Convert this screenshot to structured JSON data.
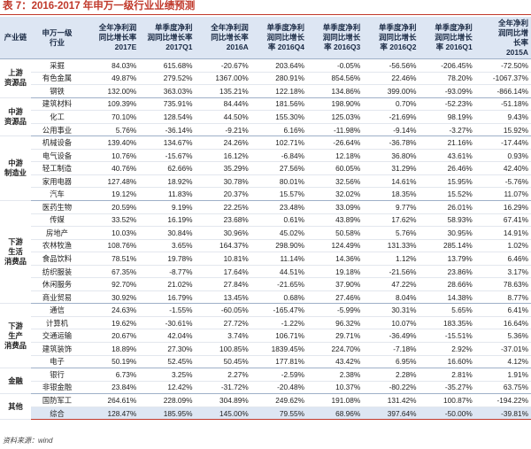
{
  "title": "表 7：2016-2017 年申万一级行业业绩预测",
  "headers": {
    "sector": "产业链",
    "industry": [
      "申万一级",
      "行业"
    ],
    "col1": [
      "全年净利润",
      "同比增长率",
      "2017E"
    ],
    "col2": [
      "单季度净利",
      "润同比增长率",
      "2017Q1"
    ],
    "col3": [
      "全年净利润",
      "同比增长率",
      "2016A"
    ],
    "col4": [
      "单季度净利",
      "润同比增长",
      "率 2016Q4"
    ],
    "col5": [
      "单季度净利",
      "润同比增长",
      "率 2016Q3"
    ],
    "col6": [
      "单季度净利",
      "润同比增长",
      "率 2016Q2"
    ],
    "col7": [
      "单季度净利",
      "润同比增长",
      "率 2016Q1"
    ],
    "col8": [
      "全年净利",
      "润同比增",
      "长率",
      "2015A"
    ]
  },
  "groups": [
    {
      "sector": "上游\n资源品",
      "rows": [
        [
          "采掘",
          "84.03%",
          "615.68%",
          "-20.67%",
          "203.64%",
          "-0.05%",
          "-56.56%",
          "-206.45%",
          "-72.50%"
        ],
        [
          "有色金属",
          "49.87%",
          "279.52%",
          "1367.00%",
          "280.91%",
          "854.56%",
          "22.46%",
          "78.20%",
          "-1067.37%"
        ],
        [
          "钢铁",
          "132.00%",
          "363.03%",
          "135.21%",
          "122.18%",
          "134.86%",
          "399.00%",
          "-93.09%",
          "-866.14%"
        ]
      ]
    },
    {
      "sector": "中游\n资源品",
      "rows": [
        [
          "建筑材料",
          "109.39%",
          "735.91%",
          "84.44%",
          "181.56%",
          "198.90%",
          "0.70%",
          "-52.23%",
          "-51.18%"
        ],
        [
          "化工",
          "70.10%",
          "128.54%",
          "44.50%",
          "155.30%",
          "125.03%",
          "-21.69%",
          "98.19%",
          "9.43%"
        ],
        [
          "公用事业",
          "5.76%",
          "-36.14%",
          "-9.21%",
          "6.16%",
          "-11.98%",
          "-9.14%",
          "-3.27%",
          "15.92%"
        ]
      ]
    },
    {
      "sector": "中游\n制造业",
      "rows": [
        [
          "机械设备",
          "139.40%",
          "134.67%",
          "24.26%",
          "102.71%",
          "-26.64%",
          "-36.78%",
          "21.16%",
          "-17.44%"
        ],
        [
          "电气设备",
          "10.76%",
          "-15.67%",
          "16.12%",
          "-6.84%",
          "12.18%",
          "36.80%",
          "43.61%",
          "0.93%"
        ],
        [
          "轻工制造",
          "40.76%",
          "62.66%",
          "35.29%",
          "27.56%",
          "60.05%",
          "31.29%",
          "26.46%",
          "42.40%"
        ],
        [
          "家用电器",
          "127.48%",
          "18.92%",
          "30.78%",
          "80.01%",
          "32.56%",
          "14.61%",
          "15.95%",
          "-5.76%"
        ],
        [
          "汽车",
          "19.12%",
          "11.83%",
          "20.37%",
          "15.57%",
          "32.02%",
          "18.35%",
          "15.52%",
          "11.07%"
        ]
      ]
    },
    {
      "sector": "下游\n生活\n消费品",
      "rows": [
        [
          "医药生物",
          "20.59%",
          "9.19%",
          "22.25%",
          "23.48%",
          "33.09%",
          "9.77%",
          "26.01%",
          "16.29%"
        ],
        [
          "传媒",
          "33.52%",
          "16.19%",
          "23.68%",
          "0.61%",
          "43.89%",
          "17.62%",
          "58.93%",
          "67.41%"
        ],
        [
          "房地产",
          "10.03%",
          "30.84%",
          "30.96%",
          "45.02%",
          "50.58%",
          "5.76%",
          "30.95%",
          "14.91%"
        ],
        [
          "农林牧渔",
          "108.76%",
          "3.65%",
          "164.37%",
          "298.90%",
          "124.49%",
          "131.33%",
          "285.14%",
          "1.02%"
        ],
        [
          "食品饮料",
          "78.51%",
          "19.78%",
          "10.81%",
          "11.14%",
          "14.36%",
          "1.12%",
          "13.79%",
          "6.46%"
        ],
        [
          "纺织服装",
          "67.35%",
          "-8.77%",
          "17.64%",
          "44.51%",
          "19.18%",
          "-21.56%",
          "23.86%",
          "3.17%"
        ],
        [
          "休闲服务",
          "92.70%",
          "21.02%",
          "27.84%",
          "-21.65%",
          "37.90%",
          "47.22%",
          "28.66%",
          "78.63%"
        ],
        [
          "商业贸易",
          "30.92%",
          "16.79%",
          "13.45%",
          "0.68%",
          "27.46%",
          "8.04%",
          "14.38%",
          "8.77%"
        ]
      ]
    },
    {
      "sector": "下游\n生产\n消费品",
      "rows": [
        [
          "通信",
          "24.63%",
          "-1.55%",
          "-60.05%",
          "-165.47%",
          "-5.99%",
          "30.31%",
          "5.65%",
          "6.41%"
        ],
        [
          "计算机",
          "19.62%",
          "-30.61%",
          "27.72%",
          "-1.22%",
          "96.32%",
          "10.07%",
          "183.35%",
          "16.64%"
        ],
        [
          "交通运输",
          "20.67%",
          "42.04%",
          "3.74%",
          "106.71%",
          "29.71%",
          "-36.49%",
          "-15.51%",
          "5.36%"
        ],
        [
          "建筑装饰",
          "18.89%",
          "27.30%",
          "100.85%",
          "1839.45%",
          "224.70%",
          "-7.18%",
          "2.92%",
          "-37.01%"
        ],
        [
          "电子",
          "50.19%",
          "52.45%",
          "50.45%",
          "177.81%",
          "43.42%",
          "6.95%",
          "16.60%",
          "4.12%"
        ]
      ]
    },
    {
      "sector": "金融",
      "rows": [
        [
          "银行",
          "6.73%",
          "3.25%",
          "2.27%",
          "-2.59%",
          "2.38%",
          "2.28%",
          "2.81%",
          "1.91%"
        ],
        [
          "非银金融",
          "23.84%",
          "12.42%",
          "-31.72%",
          "-20.48%",
          "10.37%",
          "-80.22%",
          "-35.27%",
          "63.75%"
        ]
      ]
    },
    {
      "sector": "其他",
      "rows": [
        [
          "国防军工",
          "264.61%",
          "228.09%",
          "304.89%",
          "249.62%",
          "191.08%",
          "131.42%",
          "100.87%",
          "-194.22%"
        ],
        [
          "综合",
          "128.47%",
          "185.95%",
          "145.00%",
          "79.55%",
          "68.96%",
          "397.64%",
          "-50.00%",
          "-39.81%"
        ]
      ]
    }
  ],
  "source": "资料来源：wind"
}
